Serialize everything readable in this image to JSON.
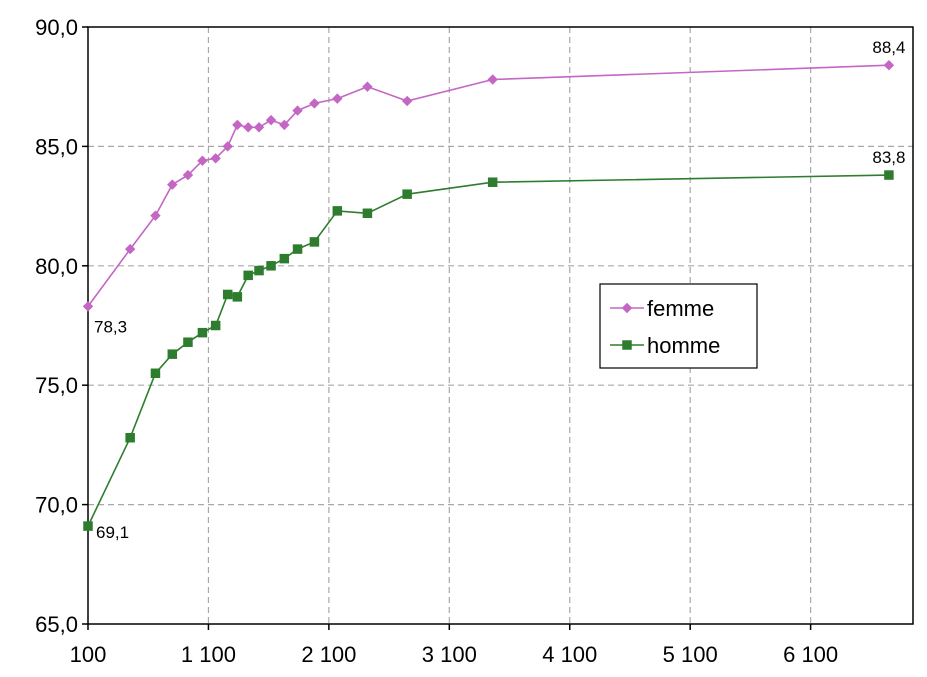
{
  "chart_data": {
    "type": "line",
    "title": "",
    "xlabel": "",
    "ylabel": "",
    "xlim": [
      100,
      6950
    ],
    "ylim": [
      65,
      90
    ],
    "x_ticks": [
      100,
      1100,
      2100,
      3100,
      4100,
      5100,
      6100
    ],
    "x_tick_labels": [
      "100",
      "1 100",
      "2 100",
      "3 100",
      "4 100",
      "5 100",
      "6 100"
    ],
    "y_ticks": [
      65,
      70,
      75,
      80,
      85,
      90
    ],
    "y_tick_labels": [
      "65,0",
      "70,0",
      "75,0",
      "80,0",
      "85,0",
      "90,0"
    ],
    "grid": true,
    "legend_position": "center-right",
    "series": [
      {
        "name": "femme",
        "color": "#c466c4",
        "marker": "diamond",
        "points": [
          [
            100,
            78.3
          ],
          [
            450,
            80.7
          ],
          [
            660,
            82.1
          ],
          [
            800,
            83.4
          ],
          [
            930,
            83.8
          ],
          [
            1050,
            84.4
          ],
          [
            1160,
            84.5
          ],
          [
            1260,
            85.0
          ],
          [
            1340,
            85.9
          ],
          [
            1430,
            85.8
          ],
          [
            1520,
            85.8
          ],
          [
            1620,
            86.1
          ],
          [
            1730,
            85.9
          ],
          [
            1840,
            86.5
          ],
          [
            1980,
            86.8
          ],
          [
            2170,
            87.0
          ],
          [
            2420,
            87.5
          ],
          [
            2750,
            86.9
          ],
          [
            3460,
            87.8
          ],
          [
            6750,
            88.4
          ]
        ]
      },
      {
        "name": "homme",
        "color": "#2e7d2e",
        "marker": "square",
        "points": [
          [
            100,
            69.1
          ],
          [
            450,
            72.8
          ],
          [
            660,
            75.5
          ],
          [
            800,
            76.3
          ],
          [
            930,
            76.8
          ],
          [
            1050,
            77.2
          ],
          [
            1160,
            77.5
          ],
          [
            1260,
            78.8
          ],
          [
            1340,
            78.7
          ],
          [
            1430,
            79.6
          ],
          [
            1520,
            79.8
          ],
          [
            1620,
            80.0
          ],
          [
            1730,
            80.3
          ],
          [
            1840,
            80.7
          ],
          [
            1980,
            81.0
          ],
          [
            2170,
            82.3
          ],
          [
            2420,
            82.2
          ],
          [
            2750,
            83.0
          ],
          [
            3460,
            83.5
          ],
          [
            6750,
            83.8
          ]
        ]
      }
    ],
    "annotations": [
      {
        "series": "femme",
        "x": 100,
        "y": 78.3,
        "text": "78,3",
        "position": "below-right"
      },
      {
        "series": "femme",
        "x": 6750,
        "y": 88.4,
        "text": "88,4",
        "position": "above"
      },
      {
        "series": "homme",
        "x": 100,
        "y": 69.1,
        "text": "69,1",
        "position": "right"
      },
      {
        "series": "homme",
        "x": 6750,
        "y": 83.8,
        "text": "83,8",
        "position": "above"
      }
    ]
  }
}
